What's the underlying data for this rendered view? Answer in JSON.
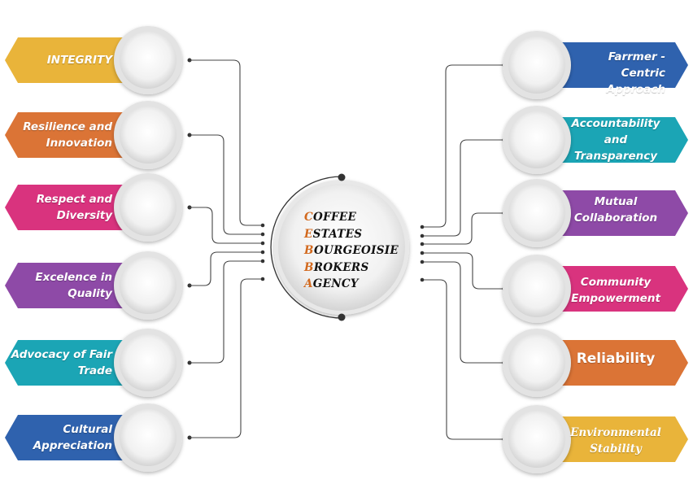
{
  "center": {
    "lines": [
      {
        "initial": "C",
        "rest": "OFFEE"
      },
      {
        "initial": "E",
        "rest": "STATES"
      },
      {
        "initial": "B",
        "rest": "OURGEOISIE"
      },
      {
        "initial": "B",
        "rest": "ROKERS"
      },
      {
        "initial": "A",
        "rest": "GENCY"
      }
    ]
  },
  "left_items": [
    {
      "lines": [
        "INTEGRITY"
      ],
      "color": "#E9B43A"
    },
    {
      "lines": [
        "Resilience and",
        "Innovation"
      ],
      "color": "#DB7436"
    },
    {
      "lines": [
        "Respect and",
        "Diversity"
      ],
      "color": "#D9337E"
    },
    {
      "lines": [
        "Excelence in",
        "Quality"
      ],
      "color": "#8E4AA7"
    },
    {
      "lines": [
        "Advocacy of Fair",
        "Trade"
      ],
      "color": "#1BA5B5"
    },
    {
      "lines": [
        "Cultural",
        "Appreciation"
      ],
      "color": "#2F62AE"
    }
  ],
  "right_items": [
    {
      "lines": [
        "Farrmer -Centric",
        "Approach"
      ],
      "color": "#2F62AE"
    },
    {
      "lines": [
        "Accountability",
        "and",
        "Transparency"
      ],
      "color": "#1BA5B5"
    },
    {
      "lines": [
        "Mutual",
        "Collaboration"
      ],
      "color": "#8E4AA7"
    },
    {
      "lines": [
        "Community",
        "Empowerment"
      ],
      "color": "#D9337E"
    },
    {
      "lines": [
        "Reliability"
      ],
      "color": "#DB7436"
    },
    {
      "lines": [
        "Environmental",
        "Stability"
      ],
      "color": "#E9B43A"
    }
  ]
}
